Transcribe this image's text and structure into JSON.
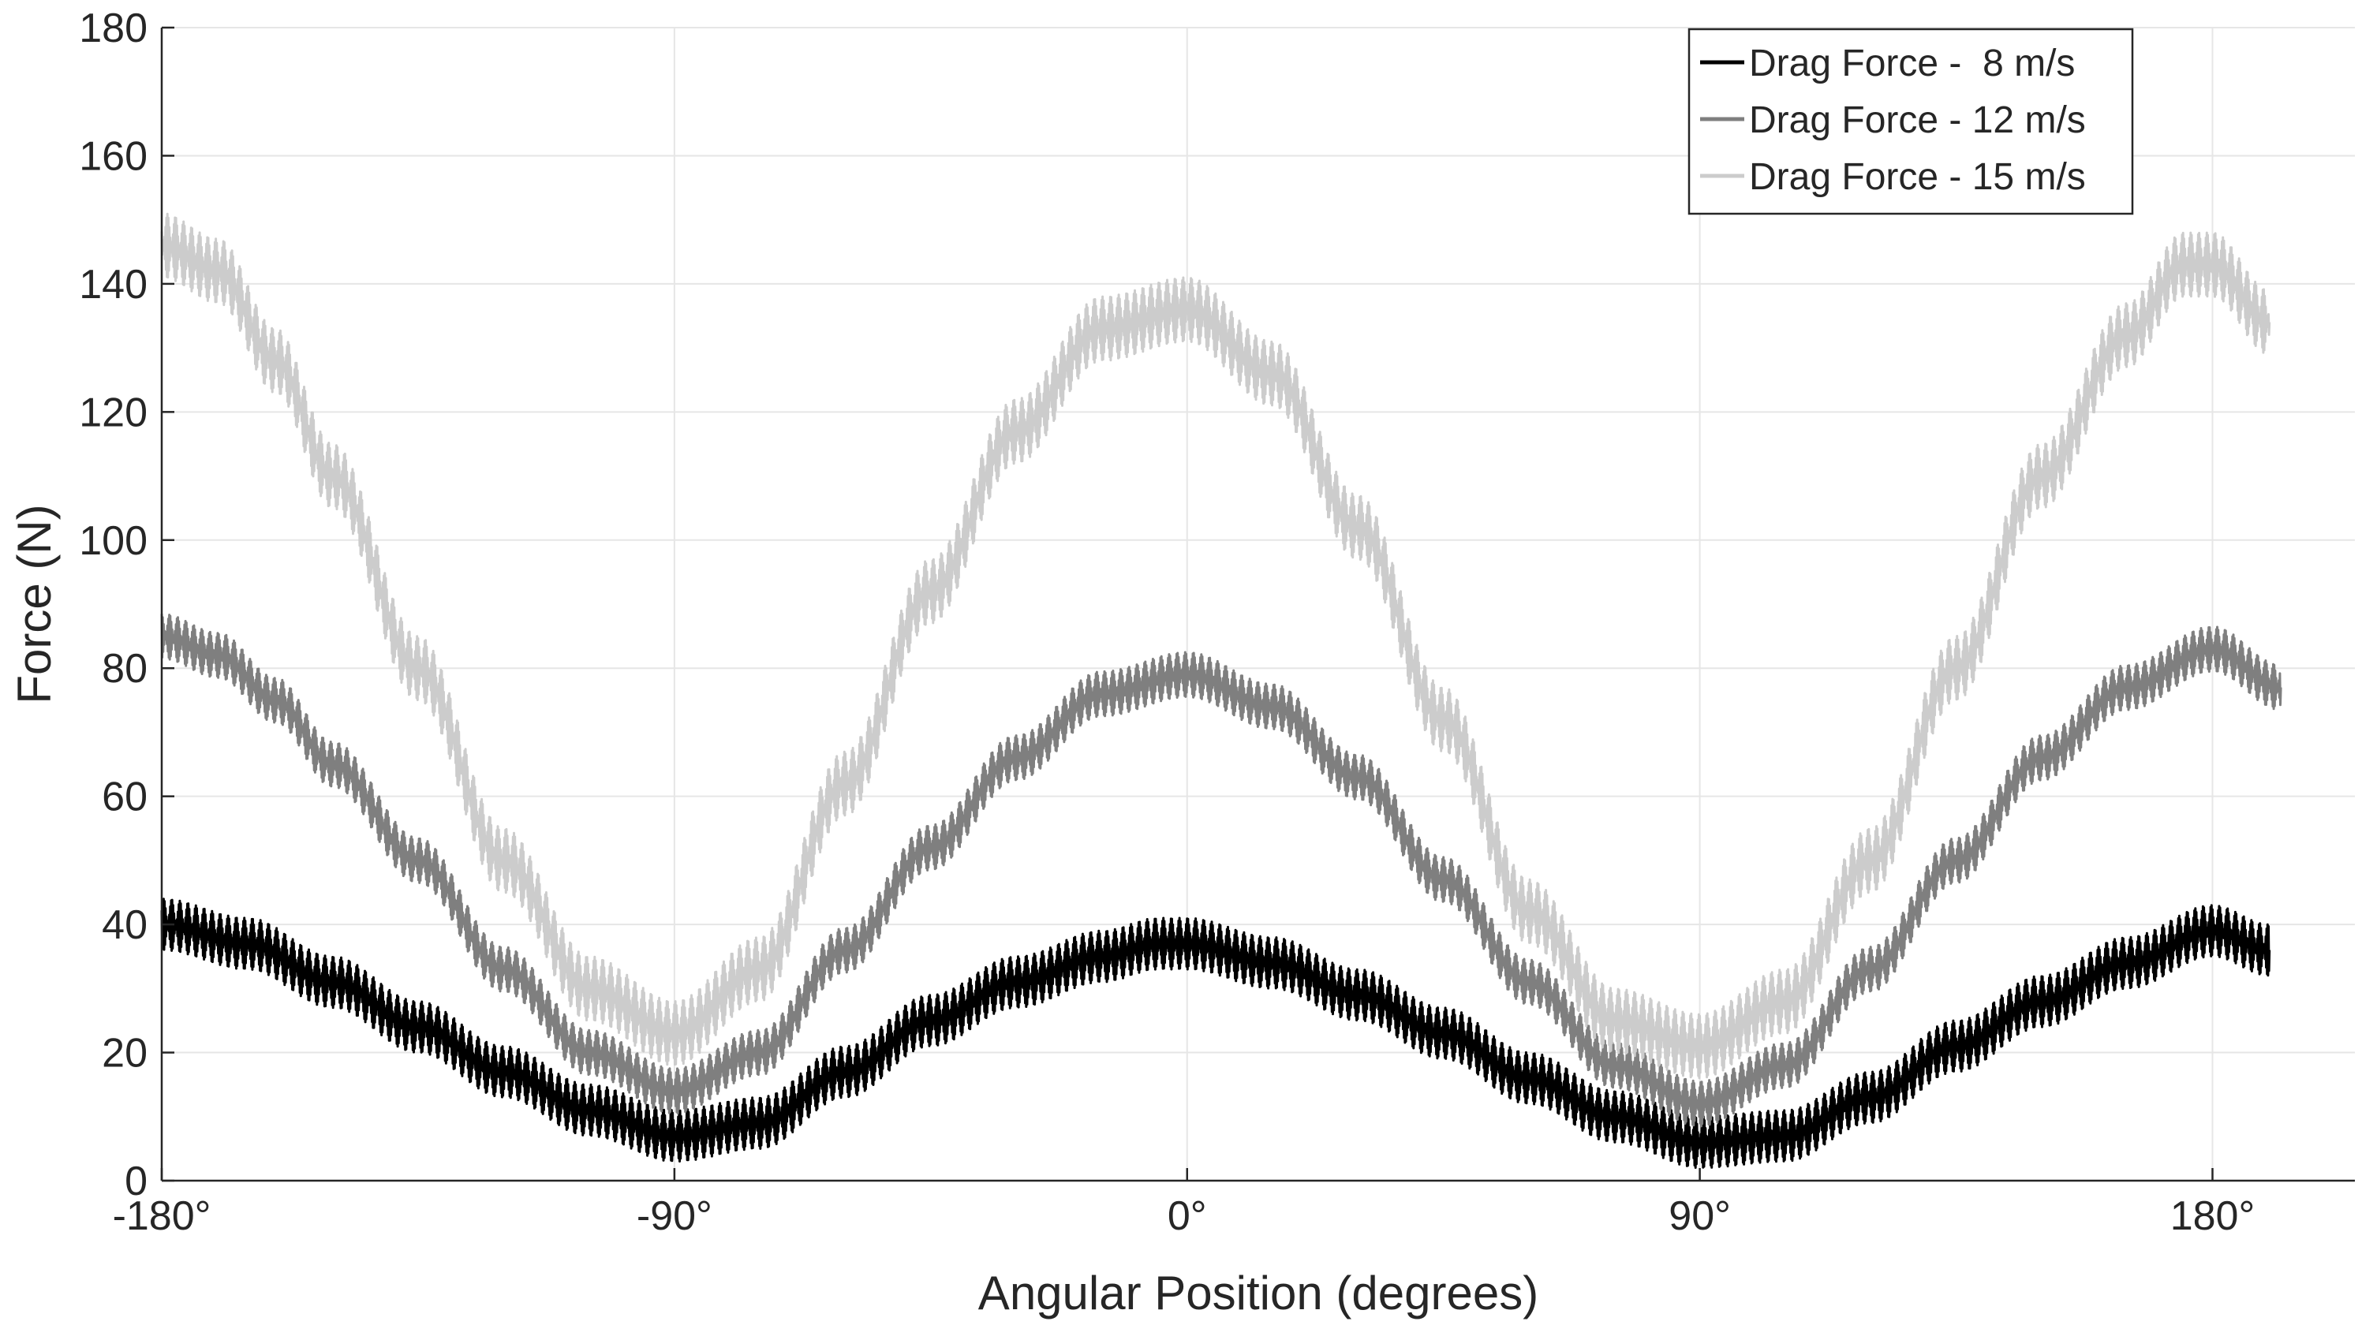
{
  "chart_data": {
    "type": "line",
    "title": "",
    "xlabel": "Angular Position (degrees)",
    "ylabel": "Force (N)",
    "xlim": [
      -180,
      205
    ],
    "ylim": [
      0,
      180
    ],
    "grid": true,
    "legend_position": "top-right",
    "x_ticks": [
      {
        "value": -180,
        "label": "-180°"
      },
      {
        "value": -90,
        "label": "-90°"
      },
      {
        "value": 0,
        "label": "0°"
      },
      {
        "value": 90,
        "label": "90°"
      },
      {
        "value": 180,
        "label": "180°"
      }
    ],
    "y_ticks": [
      {
        "value": 0,
        "label": "0"
      },
      {
        "value": 20,
        "label": "20"
      },
      {
        "value": 40,
        "label": "40"
      },
      {
        "value": 60,
        "label": "60"
      },
      {
        "value": 80,
        "label": "80"
      },
      {
        "value": 100,
        "label": "100"
      },
      {
        "value": 120,
        "label": "120"
      },
      {
        "value": 140,
        "label": "140"
      },
      {
        "value": 160,
        "label": "160"
      },
      {
        "value": 180,
        "label": "180"
      }
    ],
    "series": [
      {
        "name": "Drag Force -  8 m/s",
        "color": "#000000",
        "noise": 4,
        "x": [
          -180,
          -165,
          -150,
          -135,
          -120,
          -105,
          -90,
          -75,
          -60,
          -45,
          -30,
          -15,
          -5,
          0,
          15,
          30,
          45,
          60,
          75,
          90,
          105,
          120,
          135,
          150,
          165,
          180,
          190
        ],
        "y": [
          40,
          37,
          31,
          24,
          17,
          11,
          7,
          9,
          17,
          25,
          31,
          35,
          37,
          37,
          34,
          29,
          23,
          16,
          10,
          6,
          7,
          13,
          21,
          28,
          34,
          39,
          36
        ]
      },
      {
        "name": "Drag Force - 12 m/s",
        "color": "#7f7f7f",
        "noise": 3.5,
        "x": [
          -180,
          -170,
          -160,
          -150,
          -135,
          -120,
          -105,
          -90,
          -75,
          -60,
          -45,
          -30,
          -15,
          0,
          15,
          30,
          45,
          60,
          75,
          90,
          105,
          120,
          135,
          150,
          165,
          180,
          192
        ],
        "y": [
          85,
          82,
          75,
          65,
          50,
          33,
          20,
          14,
          20,
          36,
          52,
          66,
          76,
          79,
          74,
          63,
          47,
          31,
          18,
          12,
          18,
          33,
          50,
          66,
          77,
          83,
          77
        ]
      },
      {
        "name": "Drag Force - 15 m/s",
        "color": "#cccccc",
        "noise": 5,
        "x": [
          -180,
          -170,
          -160,
          -150,
          -135,
          -120,
          -105,
          -90,
          -75,
          -60,
          -45,
          -30,
          -15,
          0,
          15,
          30,
          45,
          60,
          75,
          90,
          105,
          120,
          135,
          150,
          165,
          175,
          180,
          190
        ],
        "y": [
          146,
          142,
          128,
          110,
          80,
          50,
          30,
          23,
          33,
          62,
          92,
          117,
          133,
          136,
          126,
          102,
          72,
          42,
          25,
          21,
          28,
          50,
          80,
          110,
          132,
          143,
          143,
          134
        ]
      }
    ]
  }
}
